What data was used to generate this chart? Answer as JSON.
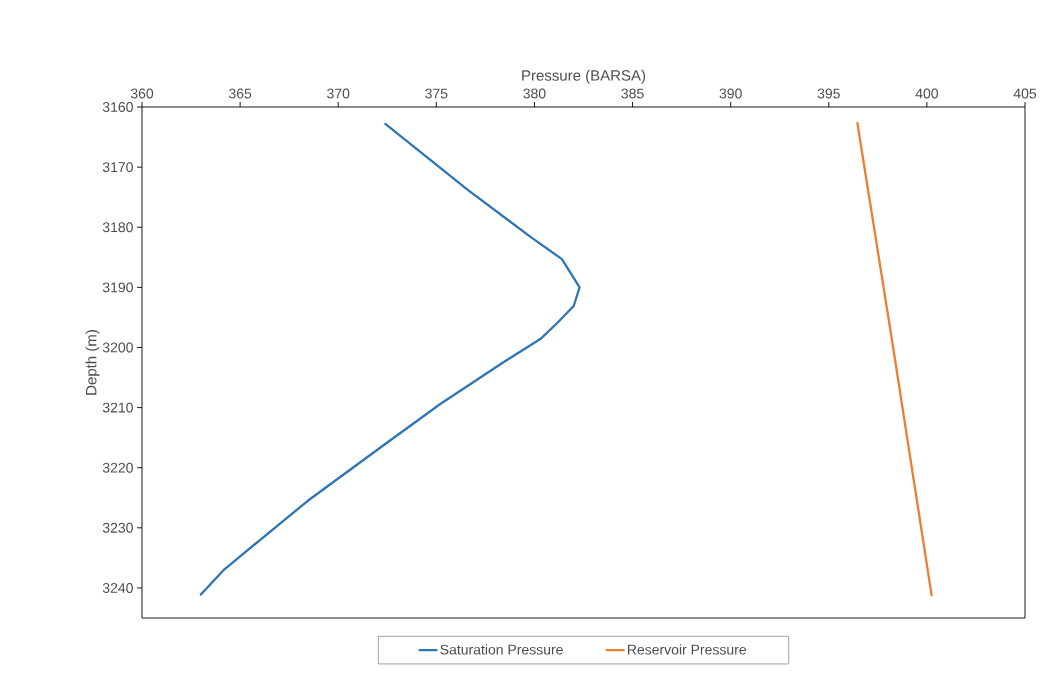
{
  "chart_data": {
    "type": "line",
    "xlabel": "Pressure (BARSA)",
    "ylabel": "Depth (m)",
    "xlim": [
      360,
      405
    ],
    "xticks": [
      360,
      365,
      370,
      375,
      380,
      385,
      390,
      395,
      400,
      405
    ],
    "ylim": [
      3245,
      3160
    ],
    "yticks": [
      3160,
      3170,
      3180,
      3190,
      3200,
      3210,
      3220,
      3230,
      3240
    ],
    "grid": false,
    "legend": "bottom",
    "marker": "none",
    "line_style": "solid",
    "series": [
      {
        "name": "Saturation Pressure",
        "color": "#2e75b6",
        "x": [
          372.4,
          376.65,
          379.8,
          381.4,
          382.3,
          382.0,
          381.2,
          380.3,
          378.4,
          375.2,
          372.5,
          368.45,
          364.2,
          363.0
        ],
        "values": [
          3162.8,
          3173.9,
          3181.6,
          3185.3,
          3190.0,
          3193.1,
          3195.8,
          3198.6,
          3202.5,
          3209.4,
          3215.8,
          3225.5,
          3236.9,
          3241.1
        ]
      },
      {
        "name": "Reservoir Pressure",
        "color": "#ed7d31",
        "x": [
          396.46,
          398.28,
          400.24
        ],
        "values": [
          3162.7,
          3200.0,
          3241.2
        ]
      }
    ]
  }
}
